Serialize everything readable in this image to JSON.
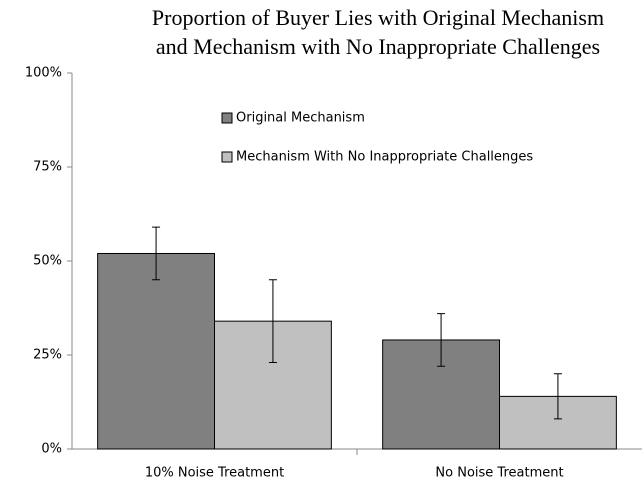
{
  "chart_data": {
    "type": "bar",
    "title": [
      "Proportion of Buyer Lies with Original Mechanism",
      "and Mechanism with No Inappropriate Challenges"
    ],
    "categories": [
      "10% Noise Treatment",
      "No Noise Treatment"
    ],
    "series": [
      {
        "name": "Original Mechanism",
        "color": "#808080",
        "values": [
          52,
          29
        ],
        "errors": [
          7,
          7
        ]
      },
      {
        "name": "Mechanism With No Inappropriate Challenges",
        "color": "#c0c0c0",
        "values": [
          34,
          14
        ],
        "errors": [
          11,
          6
        ]
      }
    ],
    "ylim": [
      0,
      100
    ],
    "yticks": [
      {
        "value": 0,
        "label": "0%"
      },
      {
        "value": 25,
        "label": "25%"
      },
      {
        "value": 50,
        "label": "50%"
      },
      {
        "value": 75,
        "label": "75%"
      },
      {
        "value": 100,
        "label": "100%"
      }
    ],
    "grid": false
  }
}
